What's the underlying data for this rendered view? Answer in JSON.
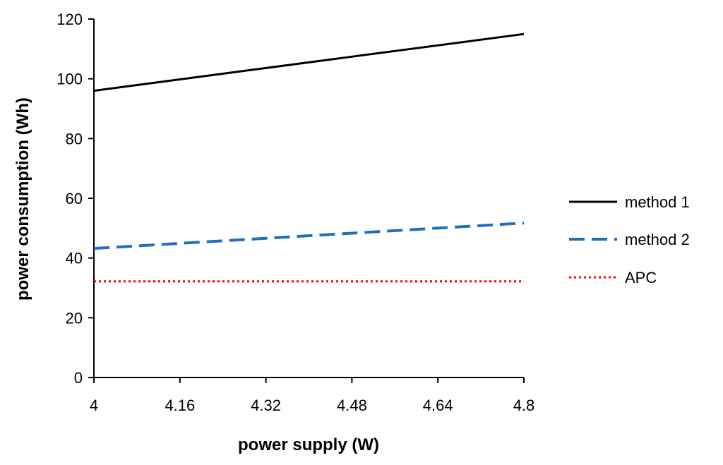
{
  "chart_data": {
    "type": "line",
    "title": "",
    "xlabel": "power supply (W)",
    "ylabel": "power consumption (Wh)",
    "x": [
      4,
      4.16,
      4.32,
      4.48,
      4.64,
      4.8
    ],
    "x_tick_labels": [
      "4",
      "4.16",
      "4.32",
      "4.48",
      "4.64",
      "4.8"
    ],
    "y_tick_labels": [
      "0",
      "20",
      "40",
      "60",
      "80",
      "100",
      "120"
    ],
    "xlim": [
      4,
      4.8
    ],
    "ylim": [
      0,
      120
    ],
    "grid": false,
    "legend_position": "right",
    "series": [
      {
        "name": "method 1",
        "color": "#000000",
        "style": "solid",
        "values": [
          96,
          99.8,
          103.6,
          107.4,
          111.2,
          115
        ]
      },
      {
        "name": "method 2",
        "color": "#1f6fbf",
        "style": "dashed",
        "values": [
          43.2,
          44.9,
          46.6,
          48.3,
          50,
          51.7
        ]
      },
      {
        "name": "APC",
        "color": "#ff0000",
        "style": "dotted",
        "values": [
          32.2,
          32.2,
          32.2,
          32.2,
          32.2,
          32.2
        ]
      }
    ]
  }
}
